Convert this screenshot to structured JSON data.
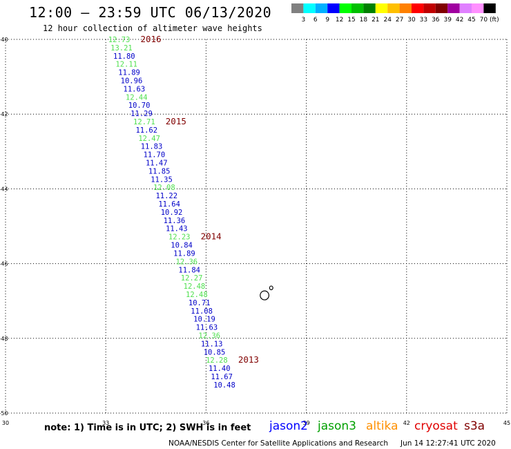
{
  "header": {
    "title": "12:00 – 23:59 UTC 06/13/2020",
    "subtitle": "12 hour collection of altimeter wave heights"
  },
  "color_scale": {
    "values": [
      "3",
      "6",
      "9",
      "12",
      "15",
      "18",
      "21",
      "24",
      "27",
      "30",
      "33",
      "36",
      "39",
      "42",
      "45",
      "70"
    ],
    "unit": "(ft)",
    "colors": [
      "#808080",
      "#00ffff",
      "#00b0ff",
      "#0000ff",
      "#00ff00",
      "#00c000",
      "#008000",
      "#ffff00",
      "#ffc000",
      "#ff8000",
      "#ff0000",
      "#c00000",
      "#800000",
      "#a000a0",
      "#e080ff",
      "#ff90ff",
      "#000000"
    ]
  },
  "axes": {
    "lon_range": [
      30,
      45
    ],
    "lat_range": [
      -50,
      -40
    ],
    "x_ticks": [
      "30",
      "33",
      "36",
      "39",
      "42",
      "45"
    ],
    "y_ticks": [
      "-40",
      "-42",
      "-44",
      "-46",
      "-48",
      "-50"
    ]
  },
  "wave_observations": [
    {
      "value": "12.73",
      "satellite": "jason3",
      "lat": -40.0,
      "lon": 33.4
    },
    {
      "value": "13.21",
      "satellite": "jason3",
      "lat": -40.22,
      "lon": 33.47
    },
    {
      "value": "11.80",
      "satellite": "jason2",
      "lat": -40.44,
      "lon": 33.55
    },
    {
      "value": "12.11",
      "satellite": "jason3",
      "lat": -40.66,
      "lon": 33.62
    },
    {
      "value": "11.89",
      "satellite": "jason2",
      "lat": -40.88,
      "lon": 33.7
    },
    {
      "value": "10.96",
      "satellite": "jason2",
      "lat": -41.1,
      "lon": 33.77
    },
    {
      "value": "11.63",
      "satellite": "jason2",
      "lat": -41.32,
      "lon": 33.85
    },
    {
      "value": "12.44",
      "satellite": "jason3",
      "lat": -41.54,
      "lon": 33.92
    },
    {
      "value": "10.70",
      "satellite": "jason2",
      "lat": -41.76,
      "lon": 34.0
    },
    {
      "value": "11.29",
      "satellite": "jason2",
      "lat": -41.98,
      "lon": 34.07
    },
    {
      "value": "12.71",
      "satellite": "jason3",
      "lat": -42.2,
      "lon": 34.15
    },
    {
      "value": "11.62",
      "satellite": "jason2",
      "lat": -42.42,
      "lon": 34.22
    },
    {
      "value": "12.47",
      "satellite": "jason3",
      "lat": -42.64,
      "lon": 34.3
    },
    {
      "value": "11.83",
      "satellite": "jason2",
      "lat": -42.86,
      "lon": 34.37
    },
    {
      "value": "11.70",
      "satellite": "jason2",
      "lat": -43.08,
      "lon": 34.45
    },
    {
      "value": "11.47",
      "satellite": "jason2",
      "lat": -43.3,
      "lon": 34.52
    },
    {
      "value": "11.85",
      "satellite": "jason2",
      "lat": -43.52,
      "lon": 34.6
    },
    {
      "value": "11.35",
      "satellite": "jason2",
      "lat": -43.74,
      "lon": 34.67
    },
    {
      "value": "12.08",
      "satellite": "jason3",
      "lat": -43.96,
      "lon": 34.75
    },
    {
      "value": "11.22",
      "satellite": "jason2",
      "lat": -44.18,
      "lon": 34.82
    },
    {
      "value": "11.64",
      "satellite": "jason2",
      "lat": -44.4,
      "lon": 34.9
    },
    {
      "value": "10.92",
      "satellite": "jason2",
      "lat": -44.62,
      "lon": 34.97
    },
    {
      "value": "11.36",
      "satellite": "jason2",
      "lat": -44.84,
      "lon": 35.05
    },
    {
      "value": "11.43",
      "satellite": "jason2",
      "lat": -45.06,
      "lon": 35.12
    },
    {
      "value": "12.23",
      "satellite": "jason3",
      "lat": -45.28,
      "lon": 35.2
    },
    {
      "value": "10.84",
      "satellite": "jason2",
      "lat": -45.5,
      "lon": 35.27
    },
    {
      "value": "11.89",
      "satellite": "jason2",
      "lat": -45.72,
      "lon": 35.35
    },
    {
      "value": "12.36",
      "satellite": "jason3",
      "lat": -45.94,
      "lon": 35.42
    },
    {
      "value": "11.84",
      "satellite": "jason2",
      "lat": -46.16,
      "lon": 35.5
    },
    {
      "value": "12.27",
      "satellite": "jason3",
      "lat": -46.38,
      "lon": 35.57
    },
    {
      "value": "12.48",
      "satellite": "jason3",
      "lat": -46.6,
      "lon": 35.65
    },
    {
      "value": "12.48",
      "satellite": "jason3",
      "lat": -46.82,
      "lon": 35.72
    },
    {
      "value": "10.71",
      "satellite": "jason2",
      "lat": -47.04,
      "lon": 35.8
    },
    {
      "value": "11.08",
      "satellite": "jason2",
      "lat": -47.26,
      "lon": 35.87
    },
    {
      "value": "10.19",
      "satellite": "jason2",
      "lat": -47.48,
      "lon": 35.95
    },
    {
      "value": "11.63",
      "satellite": "jason2",
      "lat": -47.7,
      "lon": 36.02
    },
    {
      "value": "12.36",
      "satellite": "jason3",
      "lat": -47.92,
      "lon": 36.1
    },
    {
      "value": "11.13",
      "satellite": "jason2",
      "lat": -48.14,
      "lon": 36.17
    },
    {
      "value": "10.85",
      "satellite": "jason2",
      "lat": -48.36,
      "lon": 36.25
    },
    {
      "value": "12.28",
      "satellite": "jason3",
      "lat": -48.58,
      "lon": 36.32
    },
    {
      "value": "11.40",
      "satellite": "jason2",
      "lat": -48.8,
      "lon": 36.4
    },
    {
      "value": "11.67",
      "satellite": "jason2",
      "lat": -49.02,
      "lon": 36.47
    },
    {
      "value": "10.48",
      "satellite": "jason2",
      "lat": -49.24,
      "lon": 36.55
    }
  ],
  "time_labels": [
    {
      "text": "2016",
      "lat": -40.0,
      "lon": 34.35
    },
    {
      "text": "2015",
      "lat": -42.2,
      "lon": 35.1
    },
    {
      "text": "2014",
      "lat": -45.28,
      "lon": 36.15
    },
    {
      "text": "2013",
      "lat": -48.58,
      "lon": 37.27
    }
  ],
  "islands": [
    {
      "name": "large",
      "lat": -46.85,
      "lon": 37.75,
      "rx": 0.13,
      "ry": 0.12
    },
    {
      "name": "small",
      "lat": -46.65,
      "lon": 37.95,
      "rx": 0.05,
      "ry": 0.05
    }
  ],
  "satellite_colors": {
    "jason2": "#0000c8",
    "jason3": "#50e050",
    "time": "#800000"
  },
  "note": "note:  1) Time is in UTC;  2) SWH is in feet",
  "satellites": [
    {
      "name": "jason2",
      "color": "#0000ff"
    },
    {
      "name": "jason3",
      "color": "#00a000"
    },
    {
      "name": "altika",
      "color": "#ff9000"
    },
    {
      "name": "cryosat",
      "color": "#e00000"
    },
    {
      "name": "s3a",
      "color": "#800000"
    }
  ],
  "footer": {
    "credit": "NOAA/NESDIS Center for Satellite Applications and Research",
    "timestamp": "Jun 14 12:27:41 UTC 2020"
  }
}
